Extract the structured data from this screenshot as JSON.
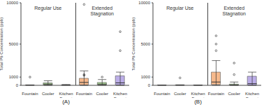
{
  "chart_data": [
    {
      "type": "box",
      "title": "(A)",
      "y_label": "Total Pb Concentration (ppb)",
      "annotations": [
        "Regular Use",
        "Extended Stagnation"
      ],
      "categories": [
        "Fountain",
        "Cooler",
        "Kitchen Faucet",
        "Fountain",
        "Cooler",
        "Kitchen Faucet"
      ],
      "colors": [
        "#f6b98c",
        "#b5e0a0",
        "#bcaee8",
        "#f6b98c",
        "#b5e0a0",
        "#bcaee8"
      ],
      "min": [
        0,
        0,
        0,
        0,
        0,
        0
      ],
      "q1": [
        0,
        50,
        0,
        50,
        50,
        50
      ],
      "median": [
        5,
        150,
        10,
        350,
        150,
        300
      ],
      "q3": [
        20,
        300,
        40,
        850,
        350,
        1150
      ],
      "max": [
        50,
        550,
        100,
        1750,
        700,
        1600
      ],
      "points": [
        [
          1000
        ],
        [],
        [],
        [
          9800,
          1300,
          1200
        ],
        [
          1000
        ],
        [
          6500,
          4200
        ]
      ],
      "ylim": [
        0,
        10000
      ],
      "yticks": [
        0,
        1000,
        5000,
        10000
      ],
      "grid": false
    },
    {
      "type": "box",
      "title": "(B)",
      "y_label": "Total Pb Concentration (ppb)",
      "annotations": [
        "Regular Use",
        "Extended Stagnation"
      ],
      "categories": [
        "Fountain",
        "Cooler",
        "Kitchen Faucet",
        "Fountain",
        "Cooler",
        "Kitchen Faucet"
      ],
      "colors": [
        "#f6b98c",
        "#b5e0a0",
        "#bcaee8",
        "#f6b98c",
        "#b5e0a0",
        "#bcaee8"
      ],
      "min": [
        0,
        0,
        0,
        0,
        0,
        0
      ],
      "q1": [
        0,
        0,
        0,
        100,
        0,
        0
      ],
      "median": [
        2,
        10,
        2,
        400,
        50,
        200
      ],
      "q3": [
        10,
        30,
        10,
        1600,
        150,
        1100
      ],
      "max": [
        30,
        60,
        20,
        3000,
        400,
        1600
      ],
      "points": [
        [],
        [
          900
        ],
        [],
        [
          6000,
          5000,
          4200
        ],
        [
          2700,
          1300
        ],
        []
      ],
      "ylim": [
        0,
        10000
      ],
      "yticks": [
        0,
        1000,
        5000,
        10000
      ],
      "grid": false
    }
  ]
}
